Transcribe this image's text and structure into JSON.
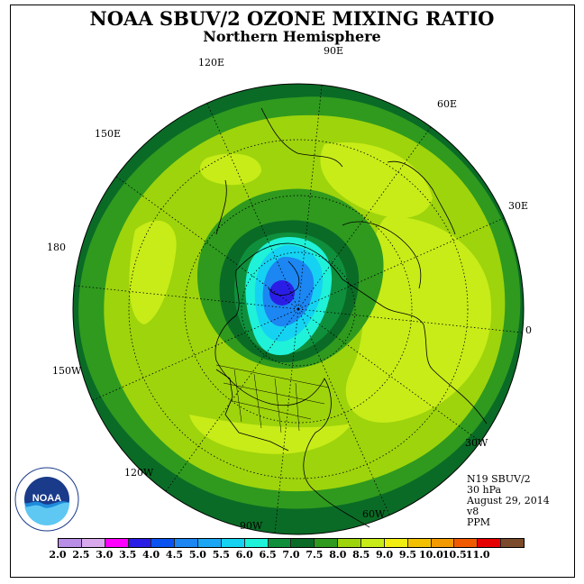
{
  "title": "NOAA SBUV/2 OZONE MIXING RATIO",
  "subtitle": "Northern Hemisphere",
  "longitude_labels": [
    "90E",
    "60E",
    "30E",
    "0",
    "30W",
    "60W",
    "90W",
    "120W",
    "150W",
    "180",
    "150E",
    "120E"
  ],
  "info": {
    "instrument": "N19 SBUV/2",
    "level": "30 hPa",
    "date": "August 29, 2014",
    "version": "v8",
    "units": "PPM"
  },
  "logo": {
    "text": "NOAA",
    "ring_text": "NATIONAL OCEANIC AND ATMOSPHERIC ADMINISTRATION",
    "ring_text_bottom": "U.S. DEPARTMENT OF COMMERCE"
  },
  "colorbar": {
    "ticks": [
      "2.0",
      "2.5",
      "3.0",
      "3.5",
      "4.0",
      "4.5",
      "5.0",
      "5.5",
      "6.0",
      "6.5",
      "7.0",
      "7.5",
      "8.0",
      "8.5",
      "9.0",
      "9.5",
      "10.0",
      "10.5",
      "11.0"
    ],
    "colors": [
      "#b98ee6",
      "#d9a9ee",
      "#ff00ff",
      "#2a1ee6",
      "#0b53f0",
      "#1c86f2",
      "#1aa6f5",
      "#15d2f2",
      "#1ff2d8",
      "#0f8f3c",
      "#0a6b26",
      "#2f9a1e",
      "#9ed40c",
      "#c8ec18",
      "#f2ee12",
      "#f2c000",
      "#f29a00",
      "#f25a00",
      "#e60000",
      "#7a4a2a"
    ]
  }
}
